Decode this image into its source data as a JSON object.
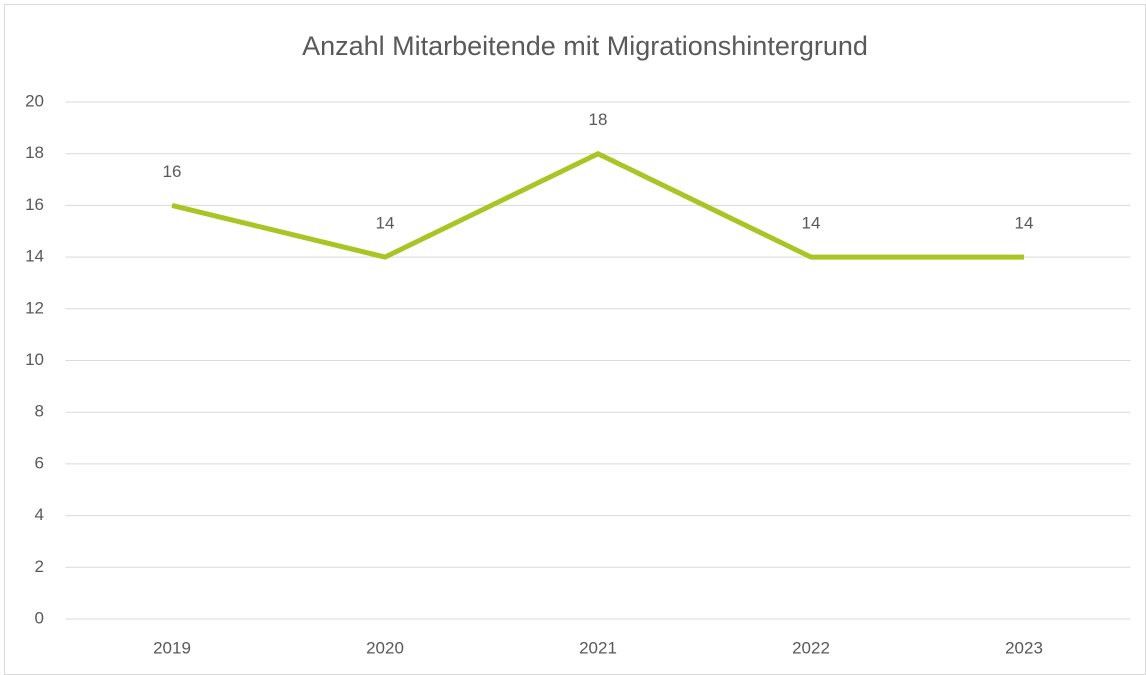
{
  "chart_data": {
    "type": "line",
    "title": "Anzahl Mitarbeitende mit Migrationshintergrund",
    "categories": [
      "2019",
      "2020",
      "2021",
      "2022",
      "2023"
    ],
    "values": [
      16,
      14,
      18,
      14,
      14
    ],
    "color": "#a9c523",
    "ylim": [
      0,
      20
    ],
    "yticks": [
      0,
      2,
      4,
      6,
      8,
      10,
      12,
      14,
      16,
      18,
      20
    ],
    "grid": true
  }
}
